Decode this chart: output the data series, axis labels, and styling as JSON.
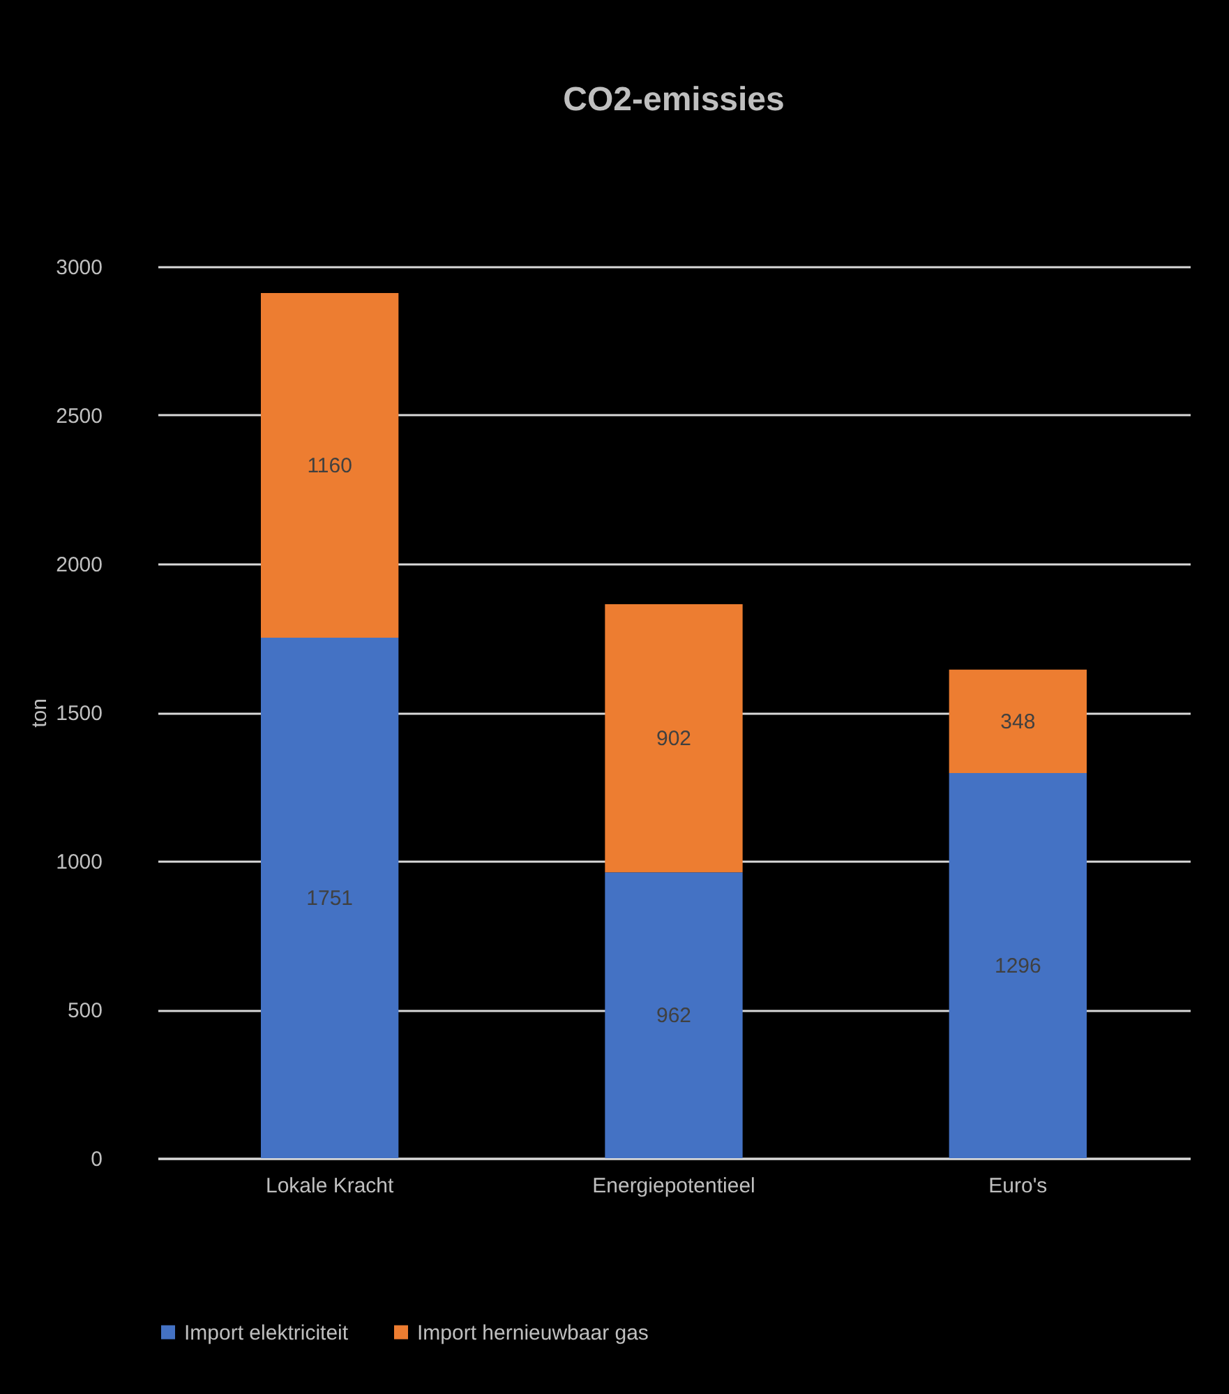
{
  "chart_data": {
    "type": "bar",
    "title": "CO2-emissies",
    "ylabel": "ton",
    "categories": [
      "Lokale Kracht",
      "Energiepotentieel",
      "Euro's"
    ],
    "stacked": true,
    "series": [
      {
        "name": "Import elektriciteit",
        "color": "#4472c4",
        "values": [
          1751,
          962,
          1296
        ]
      },
      {
        "name": "Import hernieuwbaar gas",
        "color": "#ed7d31",
        "values": [
          1160,
          902,
          348
        ]
      }
    ],
    "ylim": [
      0,
      3000
    ],
    "yticks": [
      0,
      500,
      1000,
      1500,
      2000,
      2500,
      3000
    ],
    "grid": "y",
    "legend": "bottom",
    "data_labels": true
  }
}
